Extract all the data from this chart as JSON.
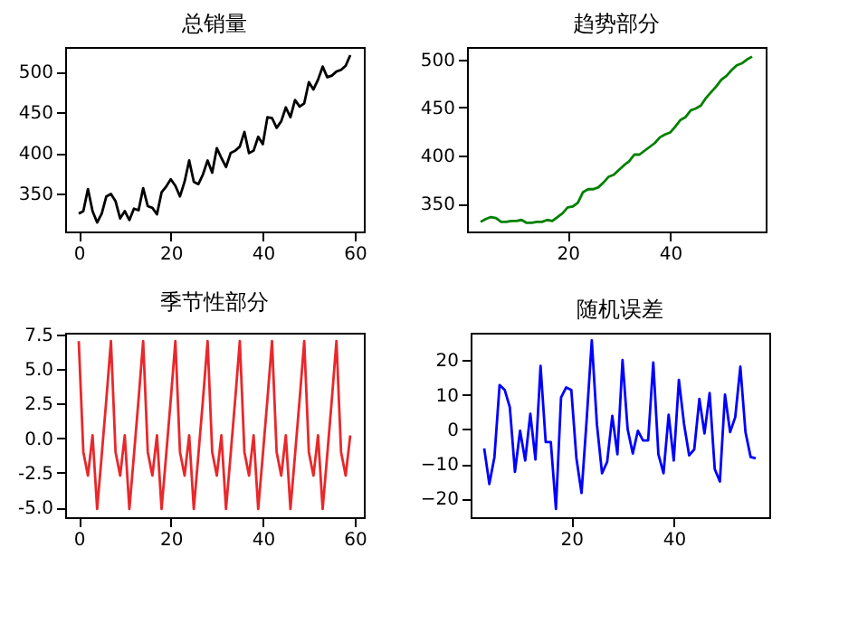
{
  "chart_data": [
    {
      "type": "line",
      "title": "总销量",
      "x": [
        0,
        1,
        2,
        3,
        4,
        5,
        6,
        7,
        8,
        9,
        10,
        11,
        12,
        13,
        14,
        15,
        16,
        17,
        18,
        19,
        20,
        21,
        22,
        23,
        24,
        25,
        26,
        27,
        28,
        29,
        30,
        31,
        32,
        33,
        34,
        35,
        36,
        37,
        38,
        39,
        40,
        41,
        42,
        43,
        44,
        45,
        46,
        47,
        48,
        49,
        50,
        51,
        52,
        53,
        54,
        55,
        56,
        57,
        58,
        59
      ],
      "series": [
        {
          "color": "#000000",
          "values": [
            326,
            329,
            356,
            329,
            315,
            326,
            347,
            350,
            341,
            320,
            329,
            318,
            332,
            330,
            357,
            335,
            333,
            325,
            352,
            359,
            368,
            360,
            347,
            365,
            391,
            365,
            362,
            374,
            391,
            376,
            406,
            394,
            383,
            400,
            403,
            408,
            426,
            400,
            403,
            420,
            411,
            444,
            443,
            431,
            439,
            456,
            444,
            465,
            457,
            461,
            487,
            478,
            490,
            506,
            493,
            495,
            500,
            502,
            507,
            520
          ]
        }
      ],
      "xlim": [
        -2.95,
        61.95
      ],
      "ylim": [
        304,
        530
      ],
      "xticks": [
        0,
        20,
        40,
        60
      ],
      "yticks": [
        350,
        400,
        450,
        500
      ]
    },
    {
      "type": "line",
      "title": "趋势部分",
      "x": [
        3,
        4,
        5,
        6,
        7,
        8,
        9,
        10,
        11,
        12,
        13,
        14,
        15,
        16,
        17,
        18,
        19,
        20,
        21,
        22,
        23,
        24,
        25,
        26,
        27,
        28,
        29,
        30,
        31,
        32,
        33,
        34,
        35,
        36,
        37,
        38,
        39,
        40,
        41,
        42,
        43,
        44,
        45,
        46,
        47,
        48,
        49,
        50,
        51,
        52,
        53,
        54,
        55,
        56
      ],
      "series": [
        {
          "color": "#008000",
          "values": [
            331,
            334,
            336,
            335,
            331,
            331,
            332,
            332,
            333,
            330,
            330,
            331,
            331,
            333,
            332,
            336,
            340,
            346,
            347,
            351,
            362,
            365,
            365,
            367,
            372,
            378,
            380,
            385,
            390,
            394,
            401,
            401,
            405,
            409,
            413,
            419,
            422,
            424,
            430,
            437,
            440,
            447,
            449,
            452,
            460,
            466,
            472,
            479,
            483,
            489,
            494,
            496,
            500,
            503
          ]
        }
      ],
      "xlim": [
        0.35,
        58.65
      ],
      "ylim": [
        321,
        513
      ],
      "xticks": [
        20,
        40
      ],
      "yticks": [
        350,
        400,
        450,
        500
      ]
    },
    {
      "type": "line",
      "title": "季节性部分",
      "x": [
        0,
        1,
        2,
        3,
        4,
        5,
        6,
        7,
        8,
        9,
        10,
        11,
        12,
        13,
        14,
        15,
        16,
        17,
        18,
        19,
        20,
        21,
        22,
        23,
        24,
        25,
        26,
        27,
        28,
        29,
        30,
        31,
        32,
        33,
        34,
        35,
        36,
        37,
        38,
        39,
        40,
        41,
        42,
        43,
        44,
        45,
        46,
        47,
        48,
        49,
        50,
        51,
        52,
        53,
        54,
        55,
        56,
        57,
        58,
        59
      ],
      "series": [
        {
          "color": "#e8282b",
          "values": [
            7,
            -1,
            -2.7,
            0.2,
            -5.1,
            -1.2,
            2.8,
            7,
            -1,
            -2.7,
            0.2,
            -5.1,
            -1.2,
            2.8,
            7,
            -1,
            -2.7,
            0.2,
            -5.1,
            -1.2,
            2.8,
            7,
            -1,
            -2.7,
            0.2,
            -5.1,
            -1.2,
            2.8,
            7,
            -1,
            -2.7,
            0.2,
            -5.1,
            -1.2,
            2.8,
            7,
            -1,
            -2.7,
            0.2,
            -5.1,
            -1.2,
            2.8,
            7,
            -1,
            -2.7,
            0.2,
            -5.1,
            -1.2,
            2.8,
            7,
            -1,
            -2.7,
            0.2,
            -5.1,
            -1.2,
            2.8,
            7,
            -1,
            -2.7,
            0.2
          ]
        }
      ],
      "xlim": [
        -2.95,
        61.95
      ],
      "ylim": [
        -5.7,
        7.6
      ],
      "xticks": [
        0,
        20,
        40,
        60
      ],
      "yticks": [
        {
          "value": -5,
          "label": "-5.0"
        },
        {
          "value": -2.5,
          "label": "-2.5"
        },
        {
          "value": 0,
          "label": "0.0"
        },
        {
          "value": 2.5,
          "label": "2.5"
        },
        {
          "value": 5,
          "label": "5.0"
        },
        {
          "value": 7.5,
          "label": "7.5"
        }
      ]
    },
    {
      "type": "line",
      "title": "随机误差",
      "x": [
        3,
        4,
        5,
        6,
        7,
        8,
        9,
        10,
        11,
        12,
        13,
        14,
        15,
        16,
        17,
        18,
        19,
        20,
        21,
        22,
        23,
        24,
        25,
        26,
        27,
        28,
        29,
        30,
        31,
        32,
        33,
        34,
        35,
        36,
        37,
        38,
        39,
        40,
        41,
        42,
        43,
        44,
        45,
        46,
        47,
        48,
        49,
        50,
        51,
        52,
        53,
        54,
        55,
        56
      ],
      "series": [
        {
          "color": "#0000ff",
          "values": [
            -5.5,
            -15.8,
            -8,
            12.8,
            11.4,
            6.4,
            -12.3,
            -0.4,
            -9,
            4.5,
            -8.7,
            18.3,
            -3.7,
            -3.7,
            -23,
            9.2,
            12.1,
            11.4,
            -8.4,
            -18.4,
            2.8,
            25.7,
            1.4,
            -12.7,
            -9.4,
            3.9,
            -7.2,
            20,
            0,
            -7,
            -0.4,
            -3.2,
            -3.2,
            19.3,
            -7.2,
            -12.7,
            4.2,
            -9,
            14.3,
            1.6,
            -7.5,
            -5.8,
            8.8,
            -1.2,
            10.5,
            -11.5,
            -15.1,
            10,
            -0.8,
            3.5,
            18.1,
            -0.8,
            -8,
            -8.4
          ]
        }
      ],
      "xlim": [
        0.35,
        58.65
      ],
      "ylim": [
        -25.4,
        27.9
      ],
      "xticks": [
        20,
        40
      ],
      "yticks": [
        -20,
        -10,
        0,
        10,
        20
      ]
    }
  ]
}
